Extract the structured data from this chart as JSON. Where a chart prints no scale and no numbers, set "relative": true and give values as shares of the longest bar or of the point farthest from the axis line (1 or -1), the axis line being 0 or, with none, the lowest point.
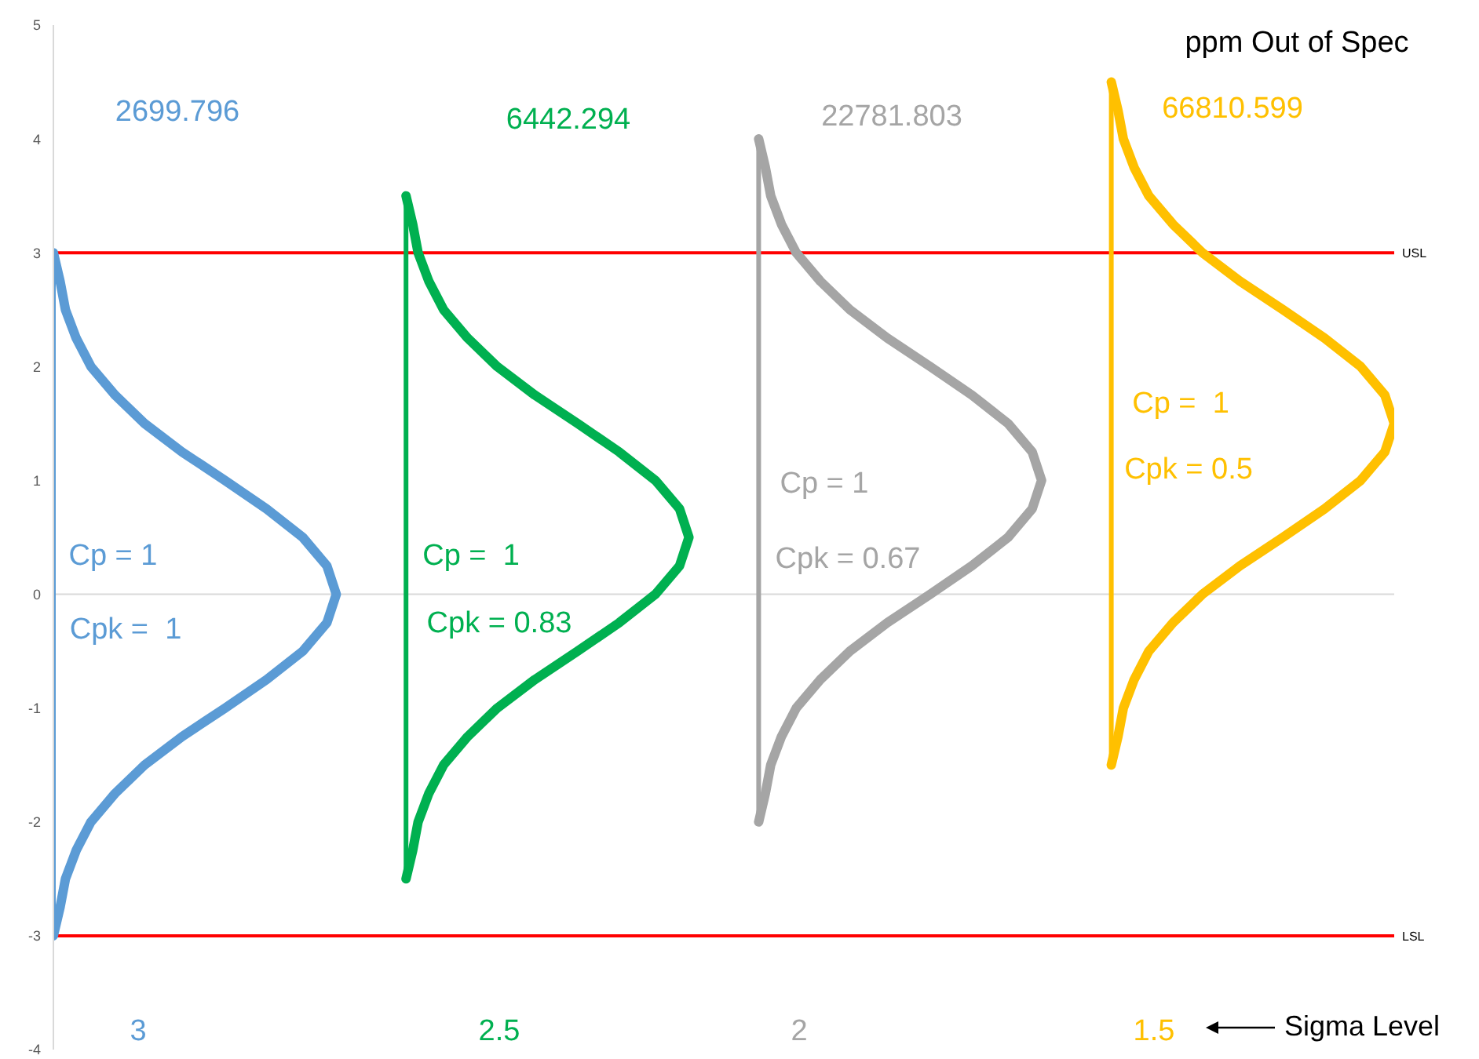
{
  "chart_data": {
    "type": "line",
    "orientation": "horizontal",
    "relative": true,
    "ylim": [
      -4,
      5
    ],
    "yticks": [
      -4,
      -3,
      -2,
      -1,
      0,
      1,
      2,
      3,
      4,
      5
    ],
    "grid": false,
    "legend": false,
    "marker": "none",
    "line_style": "solid",
    "series": [
      {
        "color": "#5b9bd5",
        "x": [
          -3,
          -2.75,
          -2.5,
          -2.25,
          -2,
          -1.75,
          -1.5,
          -1.25,
          -1,
          -0.75,
          -0.5,
          -0.25,
          0,
          0.25,
          0.5,
          0.75,
          1,
          1.25,
          1.5,
          1.75,
          2,
          2.25,
          2.5,
          2.75,
          3
        ],
        "values": [
          0,
          0.005,
          0.009,
          0.017,
          0.028,
          0.046,
          0.068,
          0.096,
          0.128,
          0.159,
          0.186,
          0.204,
          0.211,
          0.204,
          0.186,
          0.159,
          0.128,
          0.096,
          0.068,
          0.046,
          0.028,
          0.017,
          0.009,
          0.005,
          0
        ]
      },
      {
        "color": "#00b050",
        "x": [
          -2.5,
          -2.25,
          -2,
          -1.75,
          -1.5,
          -1.25,
          -1,
          -0.75,
          -0.5,
          -0.25,
          0,
          0.25,
          0.5,
          0.75,
          1,
          1.25,
          1.5,
          1.75,
          2,
          2.25,
          2.5,
          2.75,
          3,
          3.25,
          3.5
        ],
        "values": [
          0.263,
          0.268,
          0.272,
          0.28,
          0.291,
          0.309,
          0.331,
          0.359,
          0.391,
          0.422,
          0.449,
          0.467,
          0.474,
          0.467,
          0.449,
          0.422,
          0.391,
          0.359,
          0.331,
          0.309,
          0.291,
          0.28,
          0.272,
          0.268,
          0.263
        ]
      },
      {
        "color": "#a5a5a5",
        "x": [
          -2,
          -1.75,
          -1.5,
          -1.25,
          -1,
          -0.75,
          -0.5,
          -0.25,
          0,
          0.25,
          0.5,
          0.75,
          1,
          1.25,
          1.5,
          1.75,
          2,
          2.25,
          2.5,
          2.75,
          3,
          3.25,
          3.5,
          3.75,
          4
        ],
        "values": [
          0.526,
          0.531,
          0.535,
          0.543,
          0.554,
          0.572,
          0.594,
          0.622,
          0.654,
          0.685,
          0.712,
          0.73,
          0.737,
          0.73,
          0.712,
          0.685,
          0.654,
          0.622,
          0.594,
          0.572,
          0.554,
          0.543,
          0.535,
          0.531,
          0.526
        ]
      },
      {
        "color": "#ffc000",
        "x": [
          -1.5,
          -1.25,
          -1,
          -0.75,
          -0.5,
          -0.25,
          0,
          0.25,
          0.5,
          0.75,
          1,
          1.25,
          1.5,
          1.75,
          2,
          2.25,
          2.5,
          2.75,
          3,
          3.25,
          3.5,
          3.75,
          4,
          4.25,
          4.5
        ],
        "values": [
          0.789,
          0.794,
          0.798,
          0.806,
          0.817,
          0.835,
          0.857,
          0.885,
          0.917,
          0.948,
          0.975,
          0.993,
          1,
          0.993,
          0.975,
          0.948,
          0.917,
          0.885,
          0.857,
          0.835,
          0.817,
          0.806,
          0.798,
          0.794,
          0.789
        ]
      },
      {
        "color": "#5b9bd5",
        "x": [
          -3,
          3
        ],
        "values": [
          0,
          0
        ]
      },
      {
        "color": "#00b050",
        "x": [
          -2.5,
          3.5
        ],
        "values": [
          0.263,
          0.263
        ]
      },
      {
        "color": "#a5a5a5",
        "x": [
          -2,
          4
        ],
        "values": [
          0.526,
          0.526
        ]
      },
      {
        "color": "#ffc000",
        "x": [
          -1.5,
          4.5
        ],
        "values": [
          0.789,
          0.789
        ]
      }
    ],
    "ref_lines": [
      {
        "axis": "y",
        "value": 3,
        "label": "USL",
        "color": "#ff0000"
      },
      {
        "axis": "y",
        "value": -3,
        "label": "LSL",
        "color": "#ff0000"
      },
      {
        "axis": "y",
        "value": 0,
        "color": "#d9d9d9"
      }
    ],
    "annotations": [
      "ppm Out of Spec",
      "Sigma Level",
      "2699.796",
      "6442.294",
      "22781.803",
      "66810.599",
      "Cp = 1",
      "Cpk =  1",
      "Cp =  1",
      "Cpk = 0.83",
      "Cp = 1",
      "Cpk = 0.67",
      "Cp =  1",
      "Cpk = 0.5",
      "3",
      "2.5",
      "2",
      "1.5"
    ]
  }
}
